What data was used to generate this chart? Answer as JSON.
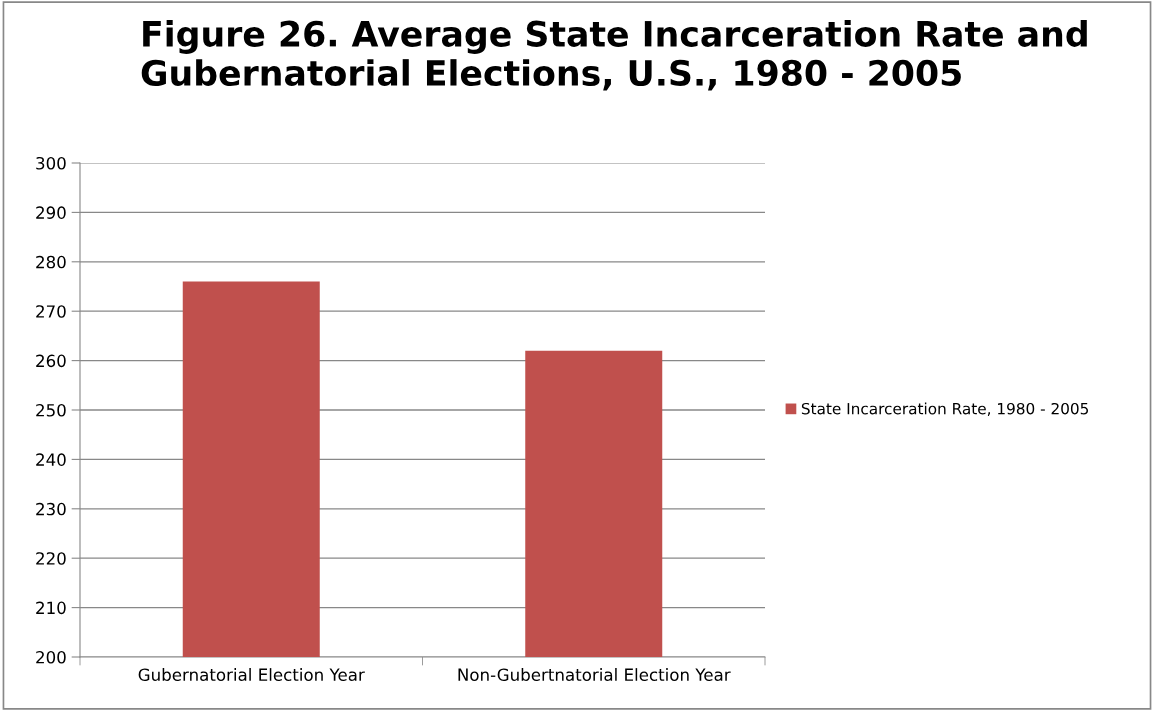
{
  "chart_data": {
    "type": "bar",
    "title": "Figure 26. Average State Incarceration Rate and Gubernatorial Elections, U.S., 1980 - 2005",
    "categories": [
      "Gubernatorial Election Year",
      "Non-Gubertnatorial Election Year"
    ],
    "series": [
      {
        "name": "State Incarceration Rate, 1980 - 2005",
        "color": "#c0504d",
        "values": [
          276,
          262
        ]
      }
    ],
    "ylim": [
      200,
      300
    ],
    "yticks": [
      200,
      210,
      220,
      230,
      240,
      250,
      260,
      270,
      280,
      290,
      300
    ],
    "grid": "y",
    "legend": "right"
  }
}
